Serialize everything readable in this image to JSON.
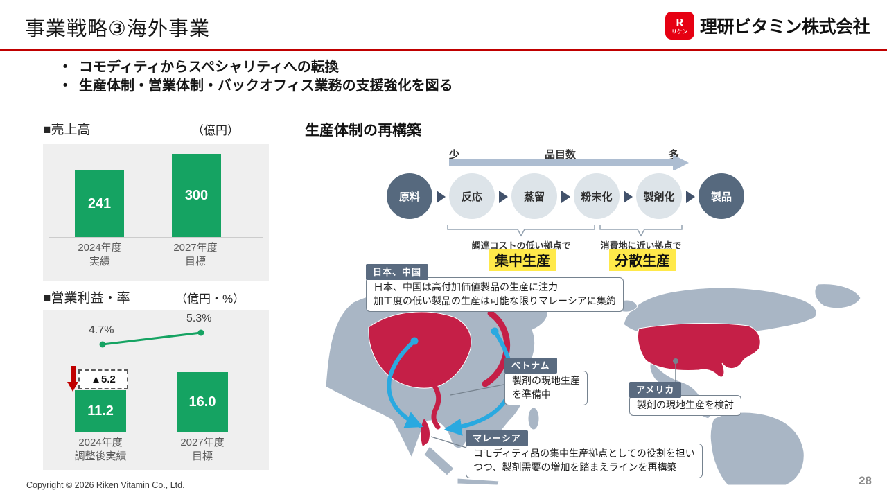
{
  "slide": {
    "title": "事業戦略③海外事業",
    "page_number": "28",
    "copyright": "Copyright © 2026 Riken Vitamin Co., Ltd.",
    "accent_red": "#c00000",
    "green": "#15a362"
  },
  "logo": {
    "company_name": "理研ビタミン株式会社",
    "mark_letter": "R",
    "mark_caption": "リケン",
    "mark_color": "#e60012"
  },
  "key_messages": {
    "marker": "・",
    "items": [
      "コモディティからスペシャリティへの転換",
      "生産体制・営業体制・バックオフィス業務の支援強化を図る"
    ]
  },
  "sales_section": {
    "heading": "■売上高",
    "unit": "（億円）"
  },
  "profit_section": {
    "heading": "■営業利益・率",
    "unit": "（億円・%）"
  },
  "chart_data": [
    {
      "type": "bar",
      "title": "売上高",
      "unit": "億円",
      "categories": [
        [
          "2024年度",
          "実績"
        ],
        [
          "2027年度",
          "目標"
        ]
      ],
      "values": [
        241,
        300
      ],
      "value_labels": [
        "241",
        "300"
      ],
      "ylim": [
        0,
        320
      ],
      "grid": false,
      "bar_color": "#15a362"
    },
    {
      "type": "combo",
      "title": "営業利益・率",
      "unit": "億円・%",
      "categories": [
        [
          "2024年度",
          "調整後実績"
        ],
        [
          "2027年度",
          "目標"
        ]
      ],
      "series": [
        {
          "name": "営業利益",
          "type": "bar",
          "values": [
            11.2,
            16.0
          ],
          "labels": [
            "11.2",
            "16.0"
          ]
        },
        {
          "name": "営業利益率",
          "type": "line",
          "values": [
            4.7,
            5.3
          ],
          "labels": [
            "4.7%",
            "5.3%"
          ]
        }
      ],
      "annotation": {
        "text": "▲5.2",
        "position": "above 2024 bar, dashed box with red down arrow"
      },
      "grid": false,
      "bar_color": "#15a362",
      "line_color": "#15a362"
    }
  ],
  "production": {
    "heading": "生産体制の再構築",
    "axis": {
      "min_label": "少",
      "title": "品目数",
      "max_label": "多"
    },
    "steps": [
      {
        "label": "原料",
        "style": "dark"
      },
      {
        "label": "反応",
        "style": "light"
      },
      {
        "label": "蒸留",
        "style": "light"
      },
      {
        "label": "粉末化",
        "style": "light"
      },
      {
        "label": "製剤化",
        "style": "light"
      },
      {
        "label": "製品",
        "style": "dark"
      }
    ],
    "strategies": [
      {
        "condition": "調達コストの低い拠点で",
        "label": "集中生産"
      },
      {
        "condition": "消費地に近い拠点で",
        "label": "分散生産"
      }
    ]
  },
  "map": {
    "land_color": "#a9b6c5",
    "highlight_color": "#c51f47",
    "arrow_color": "#2aa9e0",
    "regions": [
      {
        "name": "日本、中国",
        "note_lines": [
          "日本、中国は高付加価値製品の生産に注力",
          "加工度の低い製品の生産は可能な限りマレーシアに集約"
        ]
      },
      {
        "name": "ベトナム",
        "note_lines": [
          "製剤の現地生産",
          "を準備中"
        ]
      },
      {
        "name": "アメリカ",
        "note_lines": [
          "製剤の現地生産を検討"
        ]
      },
      {
        "name": "マレーシア",
        "note_lines": [
          "コモディティ品の集中生産拠点としての役割を担い",
          "つつ、製剤需要の増加を踏まえラインを再構築"
        ]
      }
    ]
  }
}
